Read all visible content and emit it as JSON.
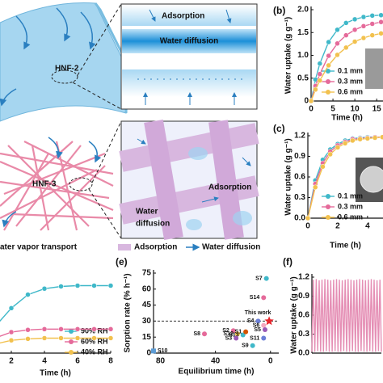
{
  "diagram": {
    "hnf2": "HNF-2",
    "hnf3": "HNF-3",
    "box1": {
      "adsorption": "Adsorption",
      "diffusion": "Water diffusion"
    },
    "box2": {
      "adsorption": "Adsorption",
      "diffusion_lines": [
        "Water",
        "diffusion"
      ]
    },
    "legend": [
      "ater vapor transport",
      "Adsorption",
      "Water diffusion"
    ]
  },
  "chart_data": [
    {
      "type": "line",
      "panel": "(b)",
      "xlabel": "Time (h)",
      "ylabel": "Water uptake (g g⁻¹)",
      "x": [
        0,
        1,
        2,
        4,
        6,
        8,
        10,
        12,
        14,
        16
      ],
      "xlim": [
        0,
        17
      ],
      "xticks": [
        0,
        5,
        10,
        15
      ],
      "ylim": [
        0,
        2
      ],
      "yticks": [
        0,
        0.5,
        {
          "value": 1,
          "label": "1.0"
        },
        1.5,
        {
          "value": 2,
          "label": "2.0"
        }
      ],
      "markers": true,
      "series": [
        {
          "name": "0.1 mm",
          "color": "#3fb8c9",
          "values": [
            0,
            0.47,
            0.82,
            1.29,
            1.56,
            1.71,
            1.79,
            1.84,
            1.87,
            1.88
          ]
        },
        {
          "name": "0.3 mm",
          "color": "#e56a9a",
          "values": [
            0,
            0.33,
            0.59,
            0.99,
            1.26,
            1.44,
            1.56,
            1.64,
            1.69,
            1.73
          ]
        },
        {
          "name": "0.6 mm",
          "color": "#f2c14e",
          "values": [
            0,
            0.25,
            0.45,
            0.78,
            1.01,
            1.17,
            1.3,
            1.38,
            1.44,
            1.48
          ]
        }
      ]
    },
    {
      "type": "line",
      "panel": "(c)",
      "xlabel": "Time (h)",
      "ylabel": "Water uptake (g g⁻¹)",
      "x": [
        0,
        0.5,
        1,
        1.5,
        2,
        2.5,
        3,
        3.5,
        4,
        4.5,
        5
      ],
      "xlim": [
        0,
        5.2
      ],
      "xticks": [
        0,
        2,
        4
      ],
      "ylim": [
        0,
        1.2
      ],
      "yticks": [
        {
          "value": 0,
          "label": "0.0"
        },
        0.3,
        0.6,
        0.9,
        1.2
      ],
      "markers": true,
      "series": [
        {
          "name": "0.1 mm",
          "color": "#3fb8c9",
          "values": [
            0,
            0.55,
            0.85,
            1.0,
            1.08,
            1.13,
            1.16,
            1.17,
            1.18,
            1.18,
            1.18
          ]
        },
        {
          "name": "0.3 mm",
          "color": "#e56a9a",
          "values": [
            0,
            0.5,
            0.8,
            0.97,
            1.06,
            1.11,
            1.15,
            1.16,
            1.17,
            1.18,
            1.18
          ]
        },
        {
          "name": "0.6 mm",
          "color": "#f2c14e",
          "values": [
            0,
            0.45,
            0.75,
            0.93,
            1.03,
            1.09,
            1.13,
            1.15,
            1.16,
            1.17,
            1.18
          ]
        }
      ]
    },
    {
      "type": "line",
      "xlabel": "Time (h)",
      "x": [
        0,
        1,
        2,
        3,
        4,
        5,
        6,
        7,
        8
      ],
      "xlim": [
        0,
        8
      ],
      "xticks": [
        2,
        4,
        6,
        8
      ],
      "ylim": [
        0,
        1.1
      ],
      "markers": true,
      "series": [
        {
          "name": "90% RH",
          "color": "#3fb8c9",
          "values": [
            0,
            0.35,
            0.6,
            0.78,
            0.86,
            0.89,
            0.9,
            0.9,
            0.9
          ]
        },
        {
          "name": "60% RH",
          "color": "#e56a9a",
          "values": [
            0,
            0.2,
            0.28,
            0.31,
            0.32,
            0.32,
            0.32,
            0.32,
            0.32
          ]
        },
        {
          "name": "40% RH",
          "color": "#f2c14e",
          "values": [
            0,
            0.12,
            0.17,
            0.19,
            0.2,
            0.2,
            0.2,
            0.2,
            0.2
          ]
        }
      ]
    },
    {
      "type": "scatter",
      "panel": "(e)",
      "xlabel": "Equilibrium time (h)",
      "ylabel": "Sorption rate (% h⁻¹)",
      "xlim": [
        85,
        -6
      ],
      "xticks": [
        80,
        40,
        0
      ],
      "ylim": [
        0,
        75
      ],
      "yticks": [
        0,
        15,
        30,
        45,
        60,
        75
      ],
      "hline": 30,
      "labels": [
        "S7",
        "S14",
        "This work",
        "S4",
        "S6",
        "S5",
        "S2",
        "S12",
        "S13",
        "S1",
        "S3",
        "S11",
        "S9",
        "S8",
        "S10"
      ],
      "x": [
        3,
        5,
        1,
        9,
        5,
        4,
        27,
        24,
        20,
        18,
        25,
        5,
        13,
        48,
        85
      ],
      "values": [
        70,
        52,
        30,
        30,
        26,
        22,
        21,
        18,
        17,
        20,
        14,
        14,
        7,
        18,
        2
      ],
      "colors": [
        "#3fb8c9",
        "#e56a9a",
        "#e8252c",
        "#6b7fd7",
        "#f4a7c0",
        "#9b59b6",
        "#e56a9a",
        "#f2c14e",
        "#3fb8c9",
        "#d35400",
        "#9b59b6",
        "#6b7fd7",
        "#3fb8c9",
        "#e56a9a",
        "#5b9bd5"
      ],
      "markers": [
        "circle",
        "circle",
        "star",
        "circle",
        "circle",
        "circle",
        "circle",
        "circle",
        "circle",
        "circle",
        "circle",
        "circle",
        "circle",
        "circle",
        "square"
      ]
    },
    {
      "type": "line",
      "panel": "(f)",
      "ylabel": "Water uptake (g g⁻¹)",
      "x": [
        0,
        1,
        2,
        3,
        4,
        5,
        6,
        7,
        8,
        9,
        10,
        11,
        12,
        13,
        14,
        15,
        16,
        17,
        18,
        19,
        20,
        21,
        22,
        23,
        24,
        25,
        26,
        27,
        28,
        29,
        30,
        31,
        32,
        33,
        34,
        35,
        36,
        37,
        38,
        39,
        40,
        41,
        42,
        43,
        44,
        45,
        46,
        47,
        48
      ],
      "xlim": [
        0,
        48
      ],
      "ylim": [
        0,
        1.2
      ],
      "yticks": [
        {
          "value": 0,
          "label": "0.0"
        },
        0.3,
        0.6,
        0.9,
        1.2
      ],
      "markers": false,
      "series": [
        {
          "color": "#e58fb5",
          "values": [
            0.02,
            1.16,
            0.02,
            1.17,
            0.03,
            1.15,
            0.02,
            1.16,
            0.02,
            1.17,
            0.03,
            1.16,
            0.02,
            1.15,
            0.02,
            1.16,
            0.03,
            1.17,
            0.02,
            1.16,
            0.02,
            1.15,
            0.03,
            1.16,
            0.02,
            1.17,
            0.02,
            1.16,
            0.03,
            1.15,
            0.02,
            1.16,
            0.02,
            1.17,
            0.03,
            1.16,
            0.02,
            1.15,
            0.02,
            1.16,
            0.03,
            1.17,
            0.02,
            1.16,
            0.02,
            1.15,
            0.03,
            1.16,
            0.02
          ]
        }
      ]
    }
  ]
}
